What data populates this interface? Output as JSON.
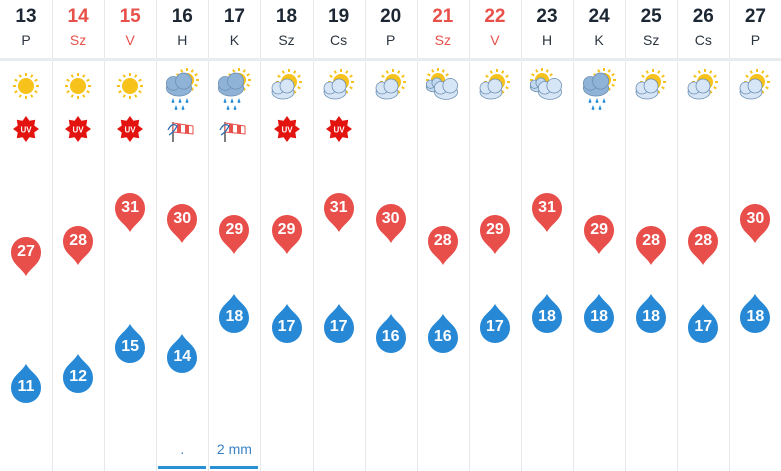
{
  "colors": {
    "weekend_text": "#e8504a",
    "max_temp_pin": "#e84e4a",
    "min_temp_pin": "#2789d6",
    "precip_text": "#3b82c4"
  },
  "days": [
    {
      "date": "13",
      "dow": "P",
      "weekend": false,
      "icon": "sun-icon",
      "extra": "uv-icon",
      "max": "27",
      "min": "11",
      "precip": ""
    },
    {
      "date": "14",
      "dow": "Sz",
      "weekend": true,
      "icon": "sun-icon",
      "extra": "uv-icon",
      "max": "28",
      "min": "12",
      "precip": ""
    },
    {
      "date": "15",
      "dow": "V",
      "weekend": true,
      "icon": "sun-icon",
      "extra": "uv-icon",
      "max": "31",
      "min": "15",
      "precip": ""
    },
    {
      "date": "16",
      "dow": "H",
      "weekend": false,
      "icon": "sun-cloud-rain-icon",
      "extra": "wind-icon",
      "max": "30",
      "min": "14",
      "precip": "."
    },
    {
      "date": "17",
      "dow": "K",
      "weekend": false,
      "icon": "sun-cloud-rain-icon",
      "extra": "wind-icon",
      "max": "29",
      "min": "18",
      "precip": "2 mm"
    },
    {
      "date": "18",
      "dow": "Sz",
      "weekend": false,
      "icon": "partly-cloudy-icon",
      "extra": "uv-icon",
      "max": "29",
      "min": "17",
      "precip": ""
    },
    {
      "date": "19",
      "dow": "Cs",
      "weekend": false,
      "icon": "partly-cloudy-icon",
      "extra": "uv-icon",
      "max": "31",
      "min": "17",
      "precip": ""
    },
    {
      "date": "20",
      "dow": "P",
      "weekend": false,
      "icon": "partly-cloudy-icon",
      "extra": "",
      "max": "30",
      "min": "16",
      "precip": ""
    },
    {
      "date": "21",
      "dow": "Sz",
      "weekend": true,
      "icon": "mostly-cloudy-icon",
      "extra": "",
      "max": "28",
      "min": "16",
      "precip": ""
    },
    {
      "date": "22",
      "dow": "V",
      "weekend": true,
      "icon": "partly-cloudy-icon",
      "extra": "",
      "max": "29",
      "min": "17",
      "precip": ""
    },
    {
      "date": "23",
      "dow": "H",
      "weekend": false,
      "icon": "mostly-cloudy-icon",
      "extra": "",
      "max": "31",
      "min": "18",
      "precip": ""
    },
    {
      "date": "24",
      "dow": "K",
      "weekend": false,
      "icon": "sun-cloud-rain-icon",
      "extra": "",
      "max": "29",
      "min": "18",
      "precip": ""
    },
    {
      "date": "25",
      "dow": "Sz",
      "weekend": false,
      "icon": "partly-cloudy-icon",
      "extra": "",
      "max": "28",
      "min": "18",
      "precip": ""
    },
    {
      "date": "26",
      "dow": "Cs",
      "weekend": false,
      "icon": "partly-cloudy-icon",
      "extra": "",
      "max": "28",
      "min": "17",
      "precip": ""
    },
    {
      "date": "27",
      "dow": "P",
      "weekend": false,
      "icon": "partly-cloudy-icon",
      "extra": "",
      "max": "30",
      "min": "18",
      "precip": ""
    }
  ]
}
